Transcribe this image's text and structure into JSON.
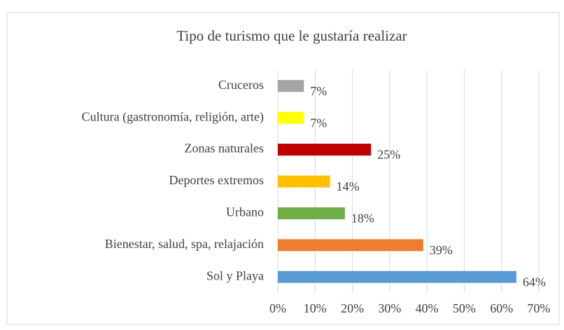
{
  "chart_data": {
    "type": "bar",
    "orientation": "horizontal",
    "title": "Tipo de turismo que le gustaría realizar",
    "categories": [
      "Cruceros",
      "Cultura (gastronomía, religión, arte)",
      "Zonas naturales",
      "Deportes extremos",
      "Urbano",
      "Bienestar, salud, spa, relajación",
      "Sol y Playa"
    ],
    "values": [
      7,
      7,
      25,
      14,
      18,
      39,
      64
    ],
    "value_labels": [
      "7%",
      "7%",
      "25%",
      "14%",
      "18%",
      "39%",
      "64%"
    ],
    "colors": [
      "#a5a5a5",
      "#ffff00",
      "#c00000",
      "#ffc000",
      "#70ad47",
      "#ed7d31",
      "#5b9bd5"
    ],
    "xlim": [
      0,
      70
    ],
    "xticks": [
      {
        "value": 0,
        "label": "0%"
      },
      {
        "value": 10,
        "label": "10%"
      },
      {
        "value": 20,
        "label": "20%"
      },
      {
        "value": 30,
        "label": "30%"
      },
      {
        "value": 40,
        "label": "40%"
      },
      {
        "value": 50,
        "label": "50%"
      },
      {
        "value": 60,
        "label": "60%"
      },
      {
        "value": 70,
        "label": "70%"
      }
    ],
    "grid": true
  }
}
